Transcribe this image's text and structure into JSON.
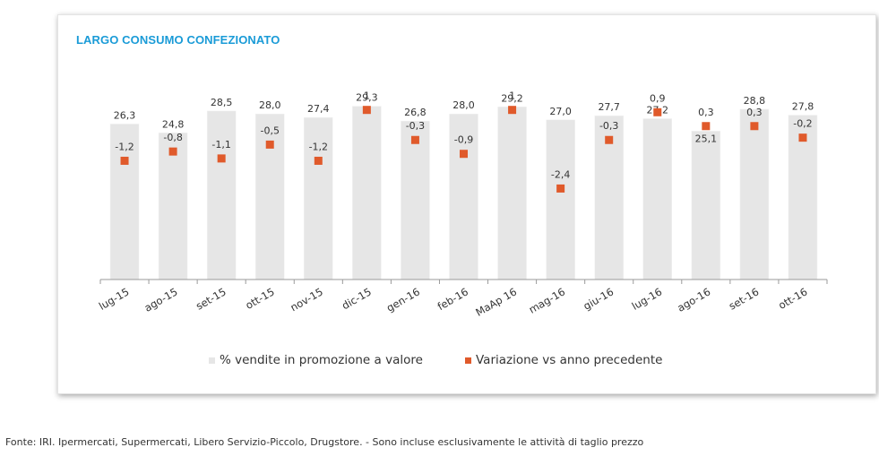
{
  "chart_data": {
    "type": "bar",
    "title": "LARGO CONSUMO CONFEZIONATO",
    "categories": [
      "lug-15",
      "ago-15",
      "set-15",
      "ott-15",
      "nov-15",
      "dic-15",
      "gen-16",
      "feb-16",
      "MaAp 16",
      "mag-16",
      "giu-16",
      "lug-16",
      "ago-16",
      "set-16",
      "ott-16"
    ],
    "series": [
      {
        "name": "% vendite in promozione a valore",
        "type": "bar",
        "color": "#e6e6e6",
        "values": [
          26.3,
          24.8,
          28.5,
          28.0,
          27.4,
          29.3,
          26.8,
          28.0,
          29.2,
          27.0,
          27.7,
          27.2,
          25.1,
          28.8,
          27.8
        ],
        "labels": [
          "26,3",
          "24,8",
          "28,5",
          "28,0",
          "27,4",
          "29,3",
          "26,8",
          "28,0",
          "29,2",
          "27,0",
          "27,7",
          "27,2",
          "25,1",
          "28,8",
          "27,8"
        ]
      },
      {
        "name": "Variazione vs anno precedente",
        "type": "scatter",
        "color": "#e05a2b",
        "values": [
          -1.2,
          -0.8,
          -1.1,
          -0.5,
          -1.2,
          1,
          -0.3,
          -0.9,
          1,
          -2.4,
          -0.3,
          0.9,
          0.3,
          0.3,
          -0.2
        ],
        "labels": [
          "-1,2",
          "-0,8",
          "-1,1",
          "-0,5",
          "-1,2",
          "1",
          "-0,3",
          "-0,9",
          "1",
          "-2,4",
          "-0,3",
          "0,9",
          "0,3",
          "0,3",
          "-0,2"
        ]
      }
    ],
    "grid": false,
    "legend": "bottom"
  },
  "source_note": "Fonte: IRI. Ipermercati, Supermercati, Libero Servizio-Piccolo, Drugstore. - Sono incluse esclusivamente le attività di taglio prezzo"
}
